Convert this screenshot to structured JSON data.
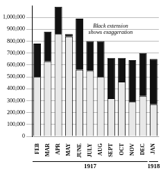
{
  "chart_data": {
    "type": "bar",
    "stacked": true,
    "categories": [
      "FEB",
      "MAR",
      "APR",
      "MAY",
      "JUNE",
      "JULY",
      "AUG",
      "SEPT",
      "OCT",
      "NOV",
      "DEC",
      "JAN"
    ],
    "series": [
      {
        "color": "#e8e8e8",
        "values": [
          500000,
          630000,
          860000,
          840000,
          560000,
          550000,
          500000,
          320000,
          460000,
          290000,
          340000,
          270000
        ]
      },
      {
        "color": "#111111",
        "values": [
          280000,
          250000,
          230000,
          20000,
          430000,
          250000,
          300000,
          340000,
          200000,
          350000,
          360000,
          380000
        ]
      }
    ],
    "ylim": [
      0,
      1100000
    ],
    "yticks": [
      0,
      {
        "value": 100000,
        "label": "100,000"
      },
      {
        "value": 200000,
        "label": "200,000"
      },
      {
        "value": 300000,
        "label": "300,000"
      },
      {
        "value": 400000,
        "label": "400,000"
      },
      {
        "value": 500000,
        "label": "500,000"
      },
      {
        "value": 600000,
        "label": "600,000"
      },
      {
        "value": 700000,
        "label": "700,000"
      },
      {
        "value": 800000,
        "label": "800,000"
      },
      {
        "value": 900000,
        "label": "900,000"
      },
      {
        "value": 1000000,
        "label": "1,000,000"
      }
    ],
    "grid": true,
    "annotations": [
      "Black extension\nshows exaggeration",
      "1917",
      "1918"
    ]
  }
}
